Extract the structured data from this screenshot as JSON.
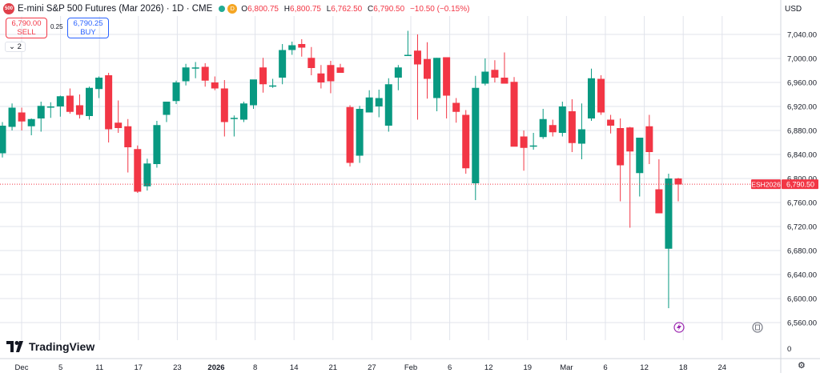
{
  "header": {
    "symbol_badge": "500",
    "title": "E-mini S&P 500 Futures (Mar 2026) · 1D · CME",
    "d_badge": "D",
    "ohlc": [
      {
        "k": "O",
        "v": "6,800.75"
      },
      {
        "k": "H",
        "v": "6,800.75"
      },
      {
        "k": "L",
        "v": "6,762.50"
      },
      {
        "k": "C",
        "v": "6,790.50"
      },
      {
        "k": "",
        "v": "−10.50 (−0.15%)"
      }
    ]
  },
  "trade": {
    "sell_price": "6,790.00",
    "sell_label": "SELL",
    "spread": "0.25",
    "buy_price": "6,790.25",
    "buy_label": "BUY",
    "collapse_count": "2"
  },
  "currency": "USD",
  "brand": "TradingView",
  "colors": {
    "up": "#089981",
    "down": "#f23645",
    "grid": "#e0e3eb",
    "text": "#131722",
    "price_tag": "#f23645"
  },
  "chart_data": {
    "type": "candlestick",
    "symbol": "ESH2026",
    "last_price": "6,790.50",
    "ylim": [
      6540,
      7070
    ],
    "y_ticks": [
      6560,
      6600,
      6640,
      6680,
      6720,
      6760,
      6800,
      6840,
      6880,
      6920,
      6960,
      7000,
      7040
    ],
    "y_tick_labels": [
      "6,560.00",
      "6,600.00",
      "6,640.00",
      "6,680.00",
      "6,720.00",
      "6,760.00",
      "6,800.00",
      "6,840.00",
      "6,880.00",
      "6,920.00",
      "6,960.00",
      "7,000.00",
      "7,040.00"
    ],
    "extra_y_tick": "0",
    "x_tick_labels": [
      "Dec",
      "5",
      "11",
      "17",
      "23",
      "2026",
      "8",
      "14",
      "21",
      "27",
      "Feb",
      "6",
      "12",
      "19",
      "Mar",
      "6",
      "12",
      "18",
      "24"
    ],
    "x_tick_bold": [
      false,
      false,
      false,
      false,
      false,
      true,
      false,
      false,
      false,
      false,
      false,
      false,
      false,
      false,
      false,
      false,
      false,
      false,
      false
    ],
    "candles": [
      {
        "o": 6842,
        "h": 6894,
        "l": 6835,
        "c": 6888
      },
      {
        "o": 6886,
        "h": 6925,
        "l": 6880,
        "c": 6918
      },
      {
        "o": 6910,
        "h": 6918,
        "l": 6880,
        "c": 6895
      },
      {
        "o": 6887,
        "h": 6900,
        "l": 6872,
        "c": 6899
      },
      {
        "o": 6900,
        "h": 6928,
        "l": 6878,
        "c": 6921
      },
      {
        "o": 6920,
        "h": 6927,
        "l": 6901,
        "c": 6920
      },
      {
        "o": 6920,
        "h": 6938,
        "l": 6903,
        "c": 6937
      },
      {
        "o": 6938,
        "h": 6950,
        "l": 6908,
        "c": 6911
      },
      {
        "o": 6922,
        "h": 6940,
        "l": 6900,
        "c": 6906
      },
      {
        "o": 6904,
        "h": 6953,
        "l": 6898,
        "c": 6951
      },
      {
        "o": 6949,
        "h": 6970,
        "l": 6934,
        "c": 6968
      },
      {
        "o": 6972,
        "h": 6976,
        "l": 6860,
        "c": 6882
      },
      {
        "o": 6893,
        "h": 6930,
        "l": 6876,
        "c": 6884
      },
      {
        "o": 6887,
        "h": 6899,
        "l": 6810,
        "c": 6852
      },
      {
        "o": 6849,
        "h": 6855,
        "l": 6776,
        "c": 6778
      },
      {
        "o": 6787,
        "h": 6833,
        "l": 6780,
        "c": 6825
      },
      {
        "o": 6824,
        "h": 6896,
        "l": 6818,
        "c": 6889
      },
      {
        "o": 6906,
        "h": 6924,
        "l": 6894,
        "c": 6928
      },
      {
        "o": 6929,
        "h": 6963,
        "l": 6924,
        "c": 6960
      },
      {
        "o": 6962,
        "h": 6991,
        "l": 6955,
        "c": 6985
      },
      {
        "o": 6984,
        "h": 6994,
        "l": 6967,
        "c": 6985
      },
      {
        "o": 6986,
        "h": 6992,
        "l": 6953,
        "c": 6963
      },
      {
        "o": 6960,
        "h": 6970,
        "l": 6947,
        "c": 6950
      },
      {
        "o": 6950,
        "h": 6964,
        "l": 6870,
        "c": 6894
      },
      {
        "o": 6900,
        "h": 6905,
        "l": 6870,
        "c": 6901
      },
      {
        "o": 6898,
        "h": 6928,
        "l": 6894,
        "c": 6925
      },
      {
        "o": 6922,
        "h": 6963,
        "l": 6916,
        "c": 6965
      },
      {
        "o": 6985,
        "h": 7001,
        "l": 6943,
        "c": 6957
      },
      {
        "o": 6955,
        "h": 6966,
        "l": 6951,
        "c": 6955
      },
      {
        "o": 6968,
        "h": 7024,
        "l": 6957,
        "c": 7014
      },
      {
        "o": 7014,
        "h": 7028,
        "l": 7006,
        "c": 7022
      },
      {
        "o": 7024,
        "h": 7032,
        "l": 7003,
        "c": 7018
      },
      {
        "o": 7001,
        "h": 7019,
        "l": 6972,
        "c": 6984
      },
      {
        "o": 6975,
        "h": 6989,
        "l": 6950,
        "c": 6960
      },
      {
        "o": 6989,
        "h": 6996,
        "l": 6942,
        "c": 6962
      },
      {
        "o": 6985,
        "h": 6991,
        "l": 6976,
        "c": 6976
      },
      {
        "o": 6919,
        "h": 6922,
        "l": 6820,
        "c": 6826
      },
      {
        "o": 6838,
        "h": 6921,
        "l": 6826,
        "c": 6916
      },
      {
        "o": 6910,
        "h": 6947,
        "l": 6910,
        "c": 6935
      },
      {
        "o": 6920,
        "h": 6948,
        "l": 6902,
        "c": 6934
      },
      {
        "o": 6888,
        "h": 6967,
        "l": 6878,
        "c": 6957
      },
      {
        "o": 6968,
        "h": 6989,
        "l": 6947,
        "c": 6985
      },
      {
        "o": 7006,
        "h": 7046,
        "l": 7004,
        "c": 7006
      },
      {
        "o": 7013,
        "h": 7040,
        "l": 6898,
        "c": 6990
      },
      {
        "o": 6999,
        "h": 7027,
        "l": 6933,
        "c": 6966
      },
      {
        "o": 6934,
        "h": 7001,
        "l": 6912,
        "c": 7001
      },
      {
        "o": 7002,
        "h": 7002,
        "l": 6900,
        "c": 6938
      },
      {
        "o": 6926,
        "h": 6934,
        "l": 6893,
        "c": 6911
      },
      {
        "o": 6906,
        "h": 6914,
        "l": 6808,
        "c": 6817
      },
      {
        "o": 6792,
        "h": 6971,
        "l": 6764,
        "c": 6951
      },
      {
        "o": 6958,
        "h": 7000,
        "l": 6955,
        "c": 6978
      },
      {
        "o": 6981,
        "h": 6997,
        "l": 6960,
        "c": 6968
      },
      {
        "o": 6968,
        "h": 7010,
        "l": 6958,
        "c": 6958
      },
      {
        "o": 6961,
        "h": 6969,
        "l": 6854,
        "c": 6853
      },
      {
        "o": 6870,
        "h": 6880,
        "l": 6813,
        "c": 6851
      },
      {
        "o": 6855,
        "h": 6876,
        "l": 6848,
        "c": 6855
      },
      {
        "o": 6869,
        "h": 6916,
        "l": 6866,
        "c": 6899
      },
      {
        "o": 6889,
        "h": 6898,
        "l": 6870,
        "c": 6877
      },
      {
        "o": 6876,
        "h": 6928,
        "l": 6870,
        "c": 6920
      },
      {
        "o": 6912,
        "h": 6932,
        "l": 6844,
        "c": 6859
      },
      {
        "o": 6858,
        "h": 6925,
        "l": 6832,
        "c": 6882
      },
      {
        "o": 6900,
        "h": 6983,
        "l": 6896,
        "c": 6967
      },
      {
        "o": 6966,
        "h": 6972,
        "l": 6906,
        "c": 6910
      },
      {
        "o": 6898,
        "h": 6906,
        "l": 6875,
        "c": 6888
      },
      {
        "o": 6884,
        "h": 6900,
        "l": 6762,
        "c": 6822
      },
      {
        "o": 6885,
        "h": 6886,
        "l": 6718,
        "c": 6845
      },
      {
        "o": 6809,
        "h": 6868,
        "l": 6770,
        "c": 6868
      },
      {
        "o": 6887,
        "h": 6906,
        "l": 6824,
        "c": 6844
      },
      {
        "o": 6782,
        "h": 6832,
        "l": 6742,
        "c": 6742
      },
      {
        "o": 6683,
        "h": 6808,
        "l": 6584,
        "c": 6800
      },
      {
        "o": 6800,
        "h": 6801,
        "l": 6762,
        "c": 6790
      }
    ]
  }
}
